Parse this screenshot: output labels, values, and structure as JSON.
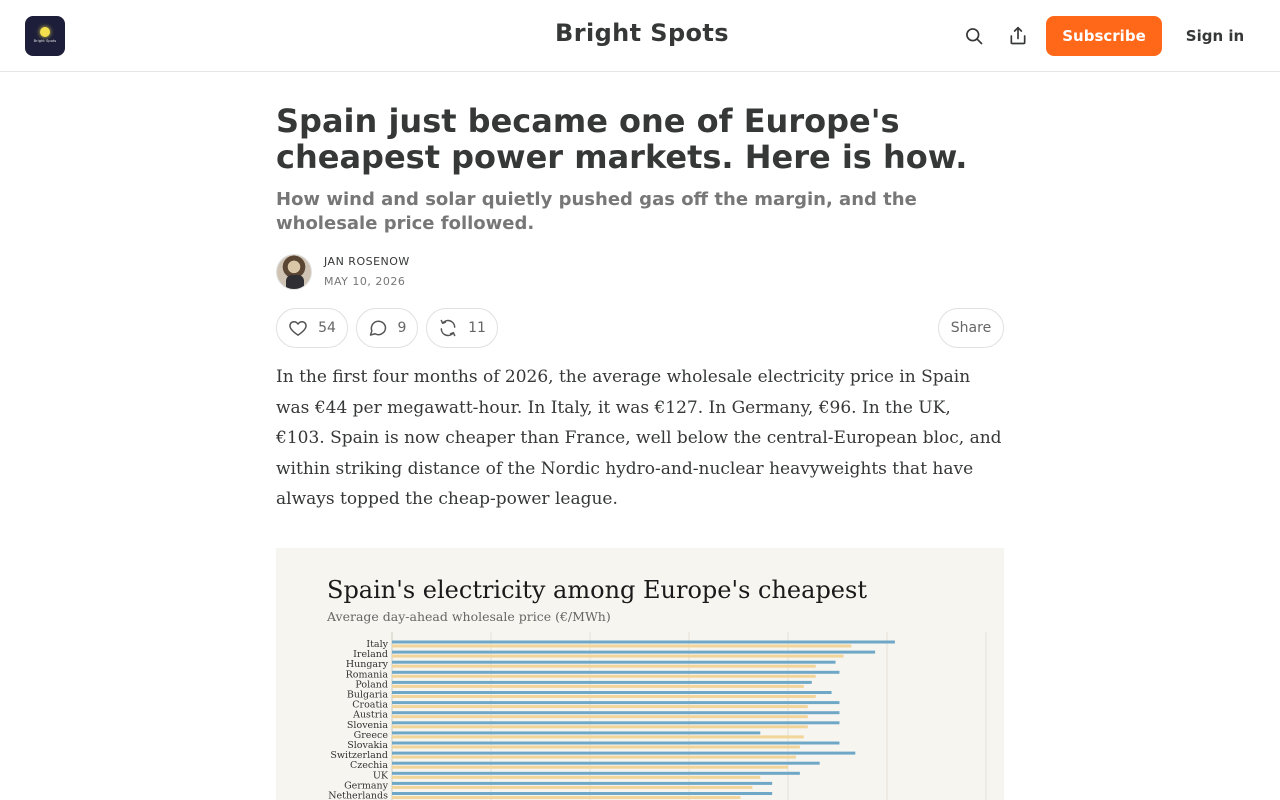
{
  "header": {
    "logo_text": "Bright Spots",
    "publication_title": "Bright Spots",
    "subscribe_label": "Subscribe",
    "signin_label": "Sign in",
    "icons": {
      "search": "search-icon",
      "share": "share-icon"
    }
  },
  "article": {
    "title": "Spain just became one of Europe's cheapest power markets. Here is how.",
    "subtitle": "How wind and solar quietly pushed gas off the margin, and the wholesale price followed.",
    "author": "JAN ROSENOW",
    "date": "MAY 10, 2026",
    "actions": {
      "likes": "54",
      "comments": "9",
      "restacks": "11",
      "share_label": "Share"
    },
    "body_paragraph": "In the first four months of 2026, the average wholesale electricity price in Spain was €44 per megawatt-hour. In Italy, it was €127. In Germany, €96. In the UK, €103. Spain is now cheaper than France, well below the central-European bloc, and within striking distance of the Nordic hydro-and-nuclear heavyweights that have always topped the cheap-power league."
  },
  "colors": {
    "accent": "#ff6719",
    "series_a": "#6fa8c7",
    "series_b": "#f2d59a",
    "chart_bg": "#f7f5f0"
  },
  "chart_data": {
    "type": "bar",
    "orientation": "horizontal",
    "title": "Spain's electricity among Europe's cheapest",
    "subtitle": "Average day-ahead wholesale price (€/MWh)",
    "xlim": [
      0,
      150
    ],
    "grid": true,
    "categories": [
      "Italy",
      "Ireland",
      "Hungary",
      "Romania",
      "Poland",
      "Bulgaria",
      "Croatia",
      "Austria",
      "Slovenia",
      "Greece",
      "Slovakia",
      "Switzerland",
      "Czechia",
      "UK",
      "Germany",
      "Netherlands"
    ],
    "series": [
      {
        "values": [
          127,
          122,
          112,
          113,
          106,
          111,
          113,
          113,
          113,
          93,
          113,
          117,
          108,
          103,
          96,
          96
        ]
      },
      {
        "values": [
          116,
          114,
          107,
          107,
          104,
          107,
          105,
          105,
          105,
          104,
          103,
          102,
          100,
          93,
          91,
          88
        ]
      }
    ]
  }
}
